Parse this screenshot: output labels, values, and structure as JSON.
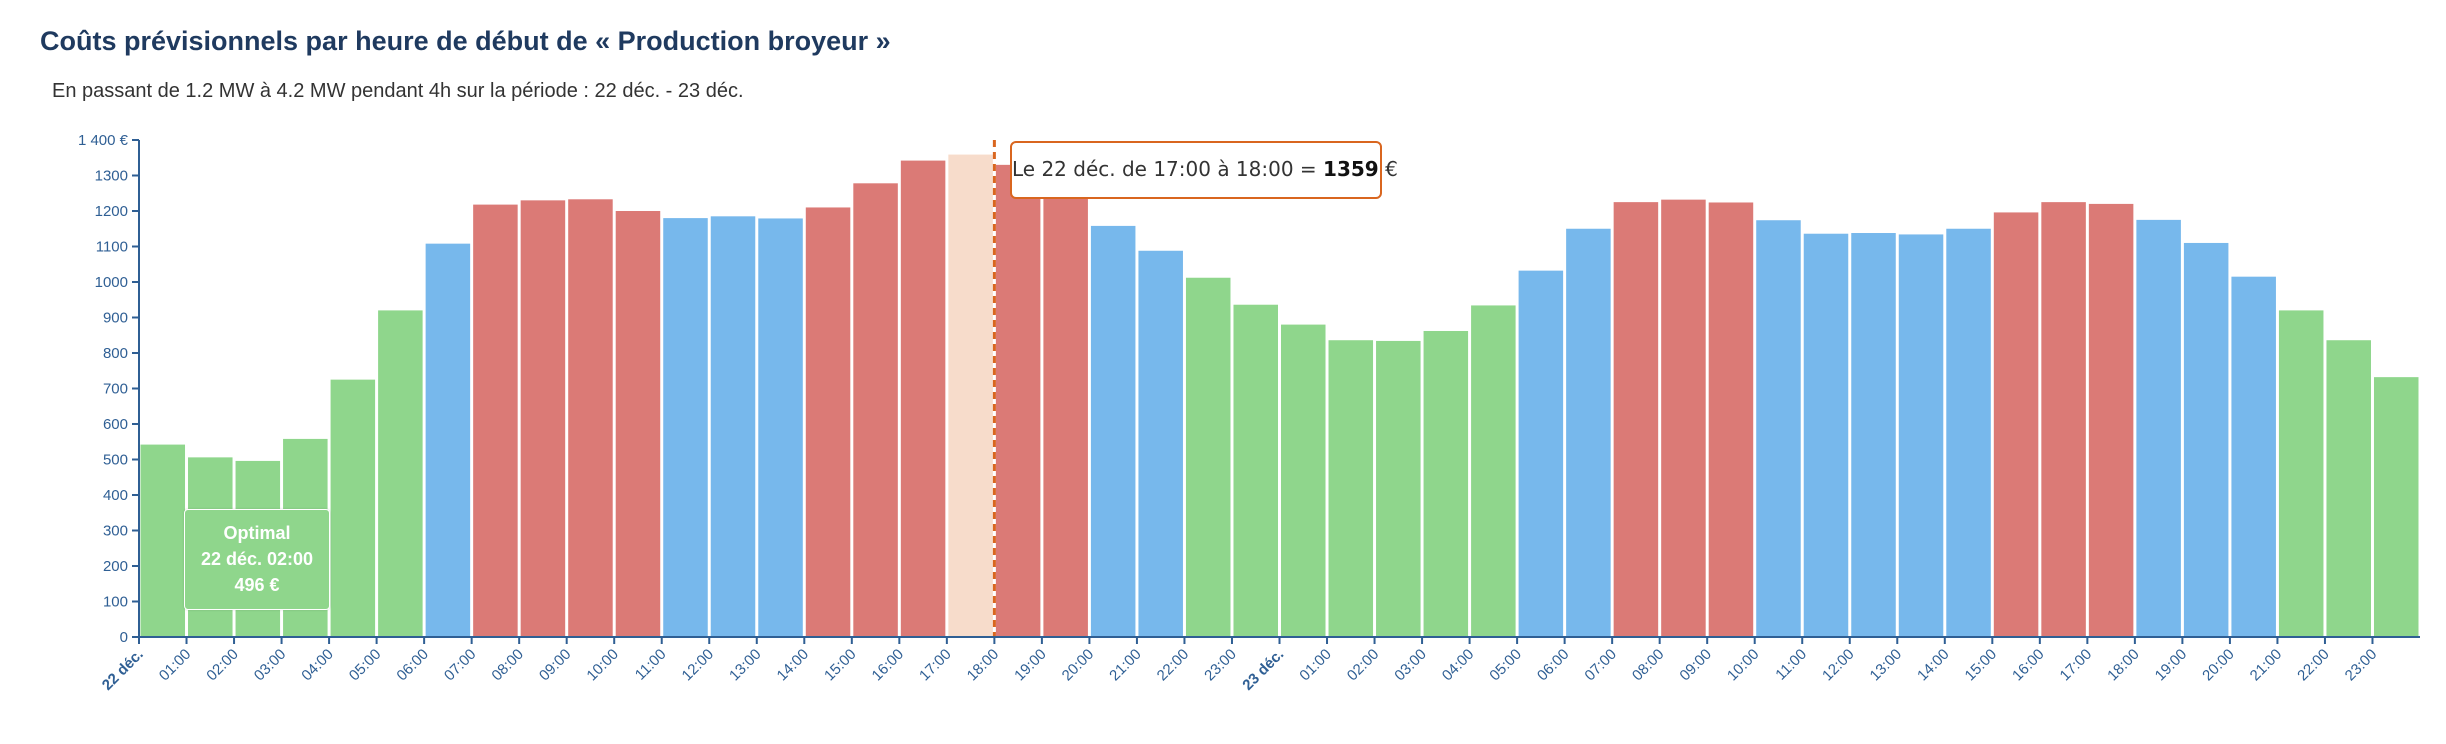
{
  "header": {
    "title": "Coûts prévisionnels par heure de début de « Production broyeur »",
    "subtitle": "En passant de 1.2 MW à 4.2 MW pendant 4h sur la période : 22 déc. - 23 déc."
  },
  "tooltip": {
    "prefix": "Le 22 déc. de 17:00 à 18:00 =",
    "value": "1359",
    "unit": "€"
  },
  "optimal": {
    "label": "Optimal",
    "date": "22 déc. 02:00",
    "value": "496 €"
  },
  "chart_data": {
    "type": "bar",
    "title": "Coûts prévisionnels par heure de début de « Production broyeur »",
    "ylim": [
      0,
      1400
    ],
    "yticks": [
      0,
      100,
      200,
      300,
      400,
      500,
      600,
      700,
      800,
      900,
      1000,
      1100,
      1200,
      1300,
      1400
    ],
    "ytick_labels": [
      "0",
      "100",
      "200",
      "300",
      "400",
      "500",
      "600",
      "700",
      "800",
      "900",
      "1000",
      "1100",
      "1200",
      "1300",
      "1 400 €"
    ],
    "grid": false,
    "categories": [
      "22 déc.",
      "01:00",
      "02:00",
      "03:00",
      "04:00",
      "05:00",
      "06:00",
      "07:00",
      "08:00",
      "09:00",
      "10:00",
      "11:00",
      "12:00",
      "13:00",
      "14:00",
      "15:00",
      "16:00",
      "17:00",
      "18:00",
      "19:00",
      "20:00",
      "21:00",
      "22:00",
      "23:00",
      "23 déc.",
      "01:00",
      "02:00",
      "03:00",
      "04:00",
      "05:00",
      "06:00",
      "07:00",
      "08:00",
      "09:00",
      "10:00",
      "11:00",
      "12:00",
      "13:00",
      "14:00",
      "15:00",
      "16:00",
      "17:00",
      "18:00",
      "19:00",
      "20:00",
      "21:00",
      "22:00",
      "23:00"
    ],
    "bold_categories": [
      0,
      24
    ],
    "values": [
      542,
      506,
      496,
      558,
      725,
      920,
      1108,
      1218,
      1230,
      1233,
      1200,
      1180,
      1185,
      1179,
      1210,
      1278,
      1342,
      1359,
      1330,
      1300,
      1158,
      1088,
      1012,
      936,
      880,
      836,
      834,
      862,
      934,
      1032,
      1150,
      1225,
      1232,
      1224,
      1174,
      1136,
      1138,
      1134,
      1150,
      1196,
      1225,
      1220,
      1175,
      1110,
      1015,
      920,
      836,
      732
    ],
    "levels": [
      "low",
      "low",
      "low",
      "low",
      "low",
      "low",
      "medium",
      "high",
      "high",
      "high",
      "high",
      "medium",
      "medium",
      "medium",
      "high",
      "high",
      "high",
      "selected",
      "high",
      "high",
      "medium",
      "medium",
      "low",
      "low",
      "low",
      "low",
      "low",
      "low",
      "low",
      "medium",
      "medium",
      "high",
      "high",
      "high",
      "medium",
      "medium",
      "medium",
      "medium",
      "medium",
      "high",
      "high",
      "high",
      "medium",
      "medium",
      "medium",
      "low",
      "low",
      "low"
    ],
    "colors": {
      "low": "#8fd68c",
      "medium": "#77b8ec",
      "high": "#db7a76",
      "selected": "#f7dccb",
      "axis": "#2f5f94",
      "marker": "#d9661f"
    },
    "selected_index": 17,
    "optimal_index": 2
  }
}
